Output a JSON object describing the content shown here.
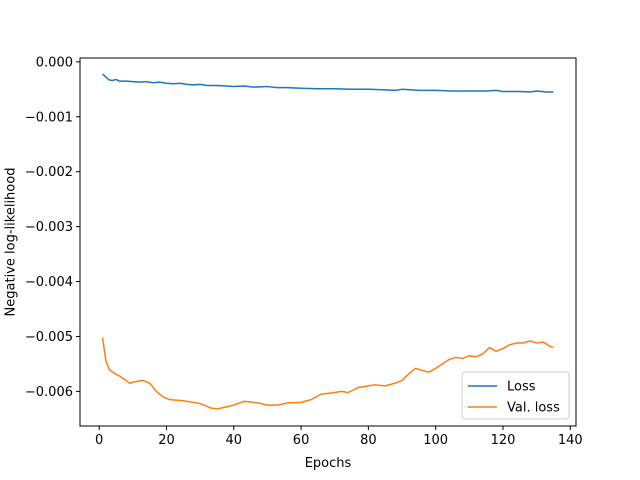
{
  "chart_data": {
    "type": "line",
    "title": "",
    "xlabel": "Epochs",
    "ylabel": "Negative log-likelihood",
    "xlim": [
      -5.7,
      141.7
    ],
    "ylim": [
      -0.00663,
      7e-05
    ],
    "xticks": [
      0,
      20,
      40,
      60,
      80,
      100,
      120,
      140
    ],
    "xtick_labels": [
      "0",
      "20",
      "40",
      "60",
      "80",
      "100",
      "120",
      "140"
    ],
    "yticks": [
      0,
      -0.001,
      -0.002,
      -0.003,
      -0.004,
      -0.005,
      -0.006
    ],
    "ytick_labels": [
      "0.000",
      "−0.001",
      "−0.002",
      "−0.003",
      "−0.004",
      "−0.005",
      "−0.006"
    ],
    "grid": false,
    "legend": "bottom-right",
    "series": [
      {
        "name": "Loss",
        "color": "#1f77b4",
        "points": [
          [
            1,
            -0.00022
          ],
          [
            2,
            -0.00028
          ],
          [
            3,
            -0.00033
          ],
          [
            4,
            -0.00034
          ],
          [
            5,
            -0.00032
          ],
          [
            6,
            -0.00035
          ],
          [
            8,
            -0.00035
          ],
          [
            10,
            -0.00036
          ],
          [
            12,
            -0.00037
          ],
          [
            14,
            -0.00036
          ],
          [
            16,
            -0.00038
          ],
          [
            18,
            -0.00037
          ],
          [
            20,
            -0.00039
          ],
          [
            22,
            -0.0004
          ],
          [
            24,
            -0.00039
          ],
          [
            26,
            -0.00041
          ],
          [
            28,
            -0.00042
          ],
          [
            30,
            -0.00041
          ],
          [
            32,
            -0.00043
          ],
          [
            35,
            -0.00043
          ],
          [
            38,
            -0.00044
          ],
          [
            40,
            -0.00045
          ],
          [
            43,
            -0.00044
          ],
          [
            46,
            -0.00046
          ],
          [
            50,
            -0.00045
          ],
          [
            53,
            -0.00047
          ],
          [
            56,
            -0.00047
          ],
          [
            60,
            -0.00048
          ],
          [
            65,
            -0.00049
          ],
          [
            70,
            -0.00049
          ],
          [
            75,
            -0.0005
          ],
          [
            80,
            -0.0005
          ],
          [
            85,
            -0.00051
          ],
          [
            88,
            -0.00052
          ],
          [
            90,
            -0.0005
          ],
          [
            95,
            -0.00052
          ],
          [
            100,
            -0.00052
          ],
          [
            105,
            -0.00053
          ],
          [
            110,
            -0.00053
          ],
          [
            115,
            -0.00053
          ],
          [
            118,
            -0.00052
          ],
          [
            120,
            -0.00054
          ],
          [
            125,
            -0.00054
          ],
          [
            128,
            -0.00055
          ],
          [
            130,
            -0.00053
          ],
          [
            133,
            -0.00055
          ],
          [
            135,
            -0.00055
          ]
        ]
      },
      {
        "name": "Val. loss",
        "color": "#ff7f0e",
        "points": [
          [
            1,
            -0.00502
          ],
          [
            2,
            -0.00545
          ],
          [
            3,
            -0.0056
          ],
          [
            4,
            -0.00565
          ],
          [
            6,
            -0.00572
          ],
          [
            8,
            -0.0058
          ],
          [
            9,
            -0.00585
          ],
          [
            11,
            -0.00582
          ],
          [
            13,
            -0.0058
          ],
          [
            15,
            -0.00585
          ],
          [
            17,
            -0.006
          ],
          [
            19,
            -0.0061
          ],
          [
            21,
            -0.00615
          ],
          [
            25,
            -0.00617
          ],
          [
            30,
            -0.00622
          ],
          [
            33,
            -0.0063
          ],
          [
            35,
            -0.00632
          ],
          [
            38,
            -0.00628
          ],
          [
            40,
            -0.00625
          ],
          [
            43,
            -0.00618
          ],
          [
            46,
            -0.0062
          ],
          [
            48,
            -0.00622
          ],
          [
            50,
            -0.00625
          ],
          [
            53,
            -0.00625
          ],
          [
            56,
            -0.00621
          ],
          [
            60,
            -0.0062
          ],
          [
            63,
            -0.00615
          ],
          [
            66,
            -0.00605
          ],
          [
            69,
            -0.00603
          ],
          [
            72,
            -0.006
          ],
          [
            74,
            -0.00602
          ],
          [
            77,
            -0.00593
          ],
          [
            80,
            -0.0059
          ],
          [
            82,
            -0.00588
          ],
          [
            85,
            -0.0059
          ],
          [
            88,
            -0.00585
          ],
          [
            90,
            -0.0058
          ],
          [
            92,
            -0.00568
          ],
          [
            94,
            -0.00558
          ],
          [
            96,
            -0.00562
          ],
          [
            98,
            -0.00565
          ],
          [
            100,
            -0.00558
          ],
          [
            102,
            -0.0055
          ],
          [
            104,
            -0.00542
          ],
          [
            106,
            -0.00538
          ],
          [
            108,
            -0.0054
          ],
          [
            110,
            -0.00535
          ],
          [
            112,
            -0.00537
          ],
          [
            114,
            -0.00532
          ],
          [
            116,
            -0.0052
          ],
          [
            118,
            -0.00527
          ],
          [
            120,
            -0.00522
          ],
          [
            122,
            -0.00515
          ],
          [
            124,
            -0.00512
          ],
          [
            126,
            -0.00512
          ],
          [
            128,
            -0.00508
          ],
          [
            130,
            -0.00512
          ],
          [
            132,
            -0.0051
          ],
          [
            134,
            -0.00518
          ],
          [
            135,
            -0.0052
          ]
        ]
      }
    ]
  }
}
